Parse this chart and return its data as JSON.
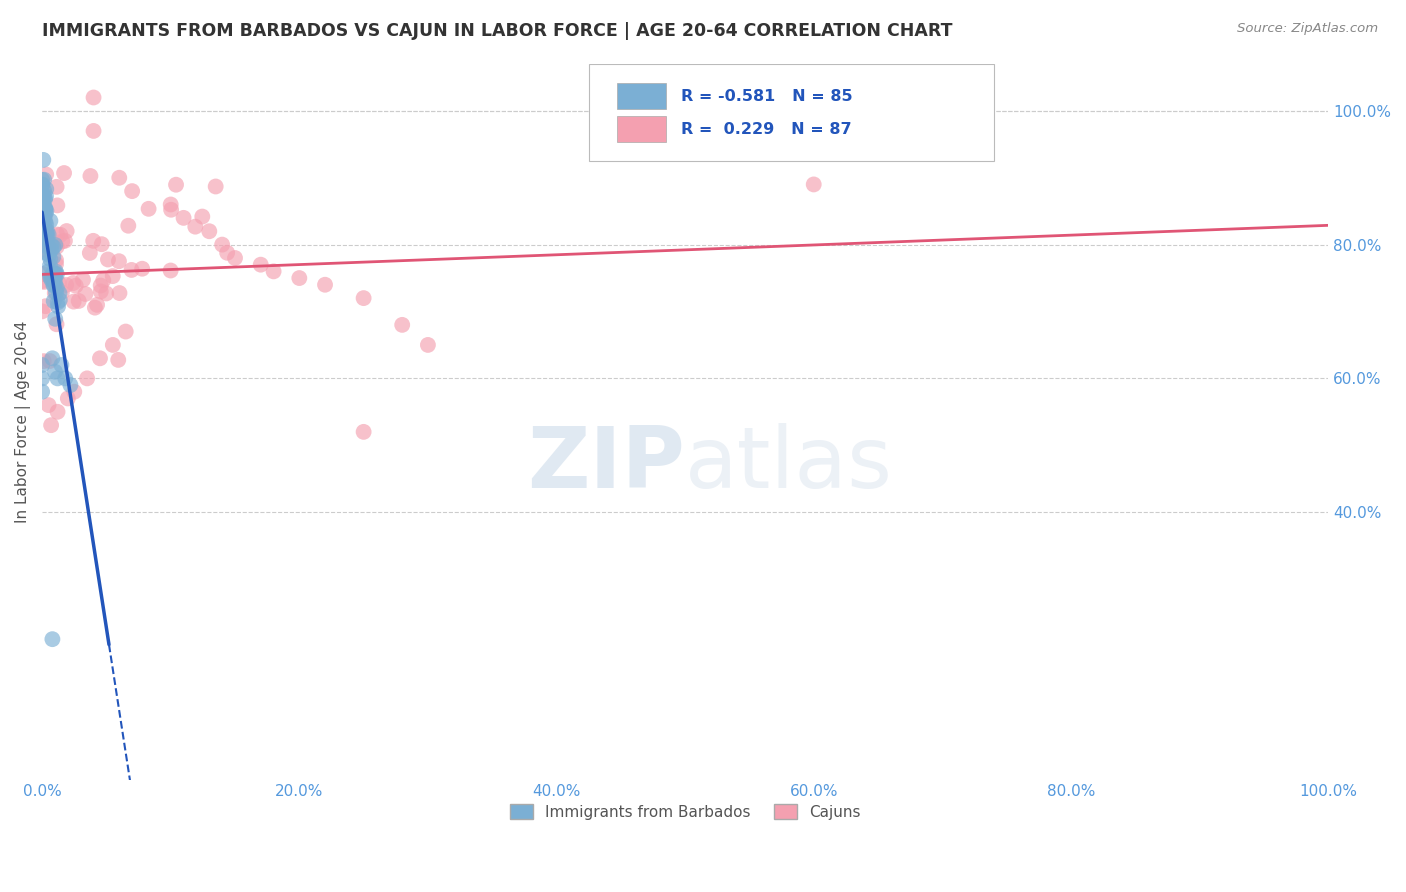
{
  "title": "IMMIGRANTS FROM BARBADOS VS CAJUN IN LABOR FORCE | AGE 20-64 CORRELATION CHART",
  "source": "Source: ZipAtlas.com",
  "ylabel": "In Labor Force | Age 20-64",
  "xlim": [
    0.0,
    1.0
  ],
  "ylim": [
    0.0,
    1.07
  ],
  "xtick_vals": [
    0.0,
    0.2,
    0.4,
    0.6,
    0.8,
    1.0
  ],
  "xtick_labels": [
    "0.0%",
    "20.0%",
    "40.0%",
    "60.0%",
    "80.0%",
    "100.0%"
  ],
  "yticks_right": [
    0.4,
    0.6,
    0.8,
    1.0
  ],
  "ytick_labels_right": [
    "40.0%",
    "60.0%",
    "80.0%",
    "100.0%"
  ],
  "blue_color": "#7BAFD4",
  "pink_color": "#F4A0B0",
  "blue_line_color": "#2255BB",
  "pink_line_color": "#E05575",
  "blue_R": -0.581,
  "blue_N": 85,
  "pink_R": 0.229,
  "pink_N": 87,
  "legend_label_blue": "Immigrants from Barbados",
  "legend_label_pink": "Cajuns",
  "watermark_zip": "ZIP",
  "watermark_atlas": "atlas",
  "tick_color": "#5599DD",
  "grid_color": "#CCCCCC",
  "title_color": "#333333",
  "source_color": "#888888",
  "ylabel_color": "#555555"
}
